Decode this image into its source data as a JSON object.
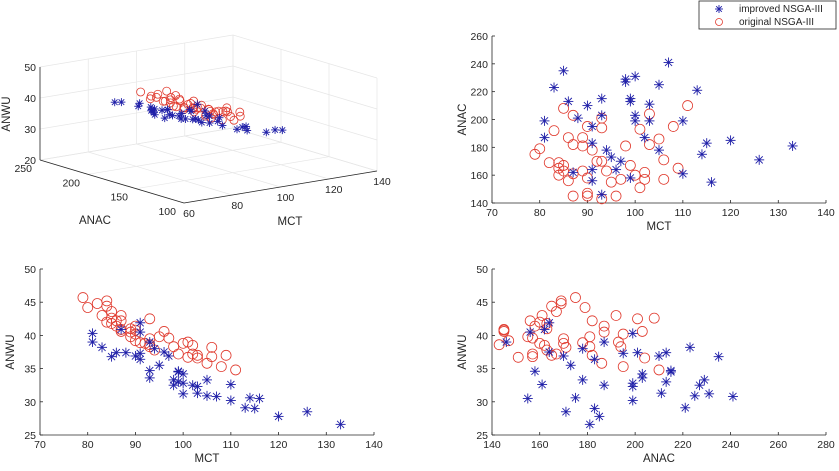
{
  "legend": {
    "items": [
      {
        "label": "improved NSGA-III",
        "marker": "asterisk",
        "color": "#1f1fa8"
      },
      {
        "label": "original NSGA-III",
        "marker": "circle",
        "color": "#e03a2e"
      }
    ],
    "placement": "top-right"
  },
  "chart_data": [
    {
      "id": "plot3d",
      "type": "scatter",
      "projection": "3d",
      "title": "",
      "xlabel": "MCT",
      "ylabel": "ANAC",
      "zlabel": "ANWU",
      "xlim": [
        60,
        140
      ],
      "ylim": [
        100,
        250
      ],
      "zlim": [
        20,
        50
      ],
      "xticks": [
        "60",
        "80",
        "100",
        "120",
        "140"
      ],
      "yticks": [
        "100",
        "150",
        "200",
        "250"
      ],
      "zticks": [
        "20",
        "30",
        "40",
        "50"
      ],
      "grid": true,
      "series_ref": [
        "improved",
        "original"
      ]
    },
    {
      "id": "mct_anac",
      "type": "scatter",
      "title": "",
      "xlabel": "MCT",
      "ylabel": "ANAC",
      "xlim": [
        70,
        140
      ],
      "ylim": [
        140,
        260
      ],
      "xticks": [
        "70",
        "80",
        "90",
        "100",
        "110",
        "120",
        "130",
        "140"
      ],
      "yticks": [
        "140",
        "160",
        "180",
        "200",
        "220",
        "240",
        "260"
      ],
      "x_field": "mct",
      "y_field": "anac",
      "grid": false
    },
    {
      "id": "mct_anwu",
      "type": "scatter",
      "title": "",
      "xlabel": "MCT",
      "ylabel": "ANWU",
      "xlim": [
        70,
        140
      ],
      "ylim": [
        25,
        50
      ],
      "xticks": [
        "70",
        "80",
        "90",
        "100",
        "110",
        "120",
        "130",
        "140"
      ],
      "yticks": [
        "25",
        "30",
        "35",
        "40",
        "45",
        "50"
      ],
      "x_field": "mct",
      "y_field": "anwu",
      "grid": false
    },
    {
      "id": "anac_anwu",
      "type": "scatter",
      "title": "",
      "xlabel": "ANAC",
      "ylabel": "ANWU",
      "xlim": [
        140,
        280
      ],
      "ylim": [
        25,
        50
      ],
      "xticks": [
        "140",
        "160",
        "180",
        "200",
        "220",
        "240",
        "260",
        "280"
      ],
      "yticks": [
        "25",
        "30",
        "35",
        "40",
        "45",
        "50"
      ],
      "x_field": "anac",
      "y_field": "anwu",
      "grid": false
    }
  ],
  "series": {
    "improved": {
      "name": "improved NSGA-III",
      "points": [
        {
          "mct": 81,
          "anac": 199,
          "anwu": 40.3
        },
        {
          "mct": 81,
          "anac": 187,
          "anwu": 39.0
        },
        {
          "mct": 83,
          "anac": 223,
          "anwu": 38.2
        },
        {
          "mct": 85,
          "anac": 235,
          "anwu": 36.8
        },
        {
          "mct": 86,
          "anac": 213,
          "anwu": 37.4
        },
        {
          "mct": 87,
          "anac": 162,
          "anwu": 40.9
        },
        {
          "mct": 88,
          "anac": 201,
          "anwu": 37.4
        },
        {
          "mct": 90,
          "anac": 210,
          "anwu": 36.9
        },
        {
          "mct": 91,
          "anac": 195,
          "anwu": 37.3
        },
        {
          "mct": 91,
          "anac": 183,
          "anwu": 36.4
        },
        {
          "mct": 91,
          "anac": 164,
          "anwu": 41.9
        },
        {
          "mct": 91,
          "anac": 156,
          "anwu": 40.5
        },
        {
          "mct": 93,
          "anac": 215,
          "anwu": 34.7
        },
        {
          "mct": 93,
          "anac": 203,
          "anwu": 33.6
        },
        {
          "mct": 93,
          "anac": 146,
          "anwu": 39.0
        },
        {
          "mct": 94,
          "anac": 178,
          "anwu": 38.0
        },
        {
          "mct": 95,
          "anac": 173,
          "anwu": 35.5
        },
        {
          "mct": 96,
          "anac": 164,
          "anwu": 37.5
        },
        {
          "mct": 97,
          "anac": 170,
          "anwu": 36.9
        },
        {
          "mct": 98,
          "anac": 229,
          "anwu": 33.3
        },
        {
          "mct": 98,
          "anac": 227,
          "anwu": 32.5
        },
        {
          "mct": 99,
          "anac": 215,
          "anwu": 34.5
        },
        {
          "mct": 99,
          "anac": 213,
          "anwu": 33.0
        },
        {
          "mct": 99,
          "anac": 158,
          "anwu": 34.6
        },
        {
          "mct": 100,
          "anac": 231,
          "anwu": 31.2
        },
        {
          "mct": 100,
          "anac": 203,
          "anwu": 34.2
        },
        {
          "mct": 100,
          "anac": 199,
          "anwu": 32.8
        },
        {
          "mct": 102,
          "anac": 187,
          "anwu": 32.5
        },
        {
          "mct": 103,
          "anac": 211,
          "anwu": 31.3
        },
        {
          "mct": 103,
          "anac": 199,
          "anwu": 32.3
        },
        {
          "mct": 105,
          "anac": 225,
          "anwu": 30.9
        },
        {
          "mct": 105,
          "anac": 178,
          "anwu": 33.3
        },
        {
          "mct": 107,
          "anac": 241,
          "anwu": 30.8
        },
        {
          "mct": 110,
          "anac": 199,
          "anwu": 30.2
        },
        {
          "mct": 110,
          "anac": 161,
          "anwu": 32.6
        },
        {
          "mct": 113,
          "anac": 221,
          "anwu": 29.1
        },
        {
          "mct": 114,
          "anac": 175,
          "anwu": 30.6
        },
        {
          "mct": 115,
          "anac": 183,
          "anwu": 29.0
        },
        {
          "mct": 116,
          "anac": 155,
          "anwu": 30.5
        },
        {
          "mct": 120,
          "anac": 185,
          "anwu": 27.8
        },
        {
          "mct": 126,
          "anac": 171,
          "anwu": 28.5
        },
        {
          "mct": 133,
          "anac": 181,
          "anwu": 26.6
        }
      ]
    },
    "original": {
      "name": "original NSGA-III",
      "points": [
        {
          "mct": 79,
          "anac": 175,
          "anwu": 45.7
        },
        {
          "mct": 80,
          "anac": 179,
          "anwu": 44.2
        },
        {
          "mct": 82,
          "anac": 169,
          "anwu": 44.8
        },
        {
          "mct": 83,
          "anac": 192,
          "anwu": 43.0
        },
        {
          "mct": 84,
          "anac": 169,
          "anwu": 45.2
        },
        {
          "mct": 84,
          "anac": 165,
          "anwu": 44.4
        },
        {
          "mct": 84,
          "anac": 160,
          "anwu": 42.0
        },
        {
          "mct": 85,
          "anac": 167,
          "anwu": 43.6
        },
        {
          "mct": 85,
          "anac": 163,
          "anwu": 41.8
        },
        {
          "mct": 85,
          "anac": 208,
          "anwu": 42.6
        },
        {
          "mct": 86,
          "anac": 156,
          "anwu": 42.2
        },
        {
          "mct": 86,
          "anac": 187,
          "anwu": 41.4
        },
        {
          "mct": 87,
          "anac": 161,
          "anwu": 43.0
        },
        {
          "mct": 87,
          "anac": 182,
          "anwu": 42.2
        },
        {
          "mct": 87,
          "anac": 203,
          "anwu": 40.6
        },
        {
          "mct": 87,
          "anac": 145,
          "anwu": 40.9
        },
        {
          "mct": 89,
          "anac": 187,
          "anwu": 40.5
        },
        {
          "mct": 89,
          "anac": 181,
          "anwu": 39.8
        },
        {
          "mct": 89,
          "anac": 163,
          "anwu": 41.0
        },
        {
          "mct": 90,
          "anac": 195,
          "anwu": 40.2
        },
        {
          "mct": 90,
          "anac": 158,
          "anwu": 41.4
        },
        {
          "mct": 90,
          "anac": 147,
          "anwu": 39.2
        },
        {
          "mct": 90,
          "anac": 145,
          "anwu": 40.8
        },
        {
          "mct": 91,
          "anac": 178,
          "anwu": 38.9
        },
        {
          "mct": 92,
          "anac": 170,
          "anwu": 38.8
        },
        {
          "mct": 93,
          "anac": 201,
          "anwu": 42.5
        },
        {
          "mct": 93,
          "anac": 194,
          "anwu": 38.3
        },
        {
          "mct": 93,
          "anac": 170,
          "anwu": 39.5
        },
        {
          "mct": 93,
          "anac": 143,
          "anwu": 38.6
        },
        {
          "mct": 94,
          "anac": 163,
          "anwu": 37.8
        },
        {
          "mct": 95,
          "anac": 155,
          "anwu": 39.8
        },
        {
          "mct": 96,
          "anac": 145,
          "anwu": 40.6
        },
        {
          "mct": 97,
          "anac": 157,
          "anwu": 39.6
        },
        {
          "mct": 98,
          "anac": 181,
          "anwu": 38.3
        },
        {
          "mct": 99,
          "anac": 167,
          "anwu": 37.2
        },
        {
          "mct": 100,
          "anac": 160,
          "anwu": 38.8
        },
        {
          "mct": 101,
          "anac": 193,
          "anwu": 39.0
        },
        {
          "mct": 101,
          "anac": 151,
          "anwu": 36.7
        },
        {
          "mct": 102,
          "anac": 162,
          "anwu": 38.5
        },
        {
          "mct": 102,
          "anac": 157,
          "anwu": 37.2
        },
        {
          "mct": 103,
          "anac": 204,
          "anwu": 36.6
        },
        {
          "mct": 103,
          "anac": 182,
          "anwu": 37.0
        },
        {
          "mct": 105,
          "anac": 186,
          "anwu": 35.8
        },
        {
          "mct": 106,
          "anac": 171,
          "anwu": 38.2
        },
        {
          "mct": 106,
          "anac": 157,
          "anwu": 36.8
        },
        {
          "mct": 108,
          "anac": 195,
          "anwu": 35.3
        },
        {
          "mct": 109,
          "anac": 165,
          "anwu": 37.0
        },
        {
          "mct": 111,
          "anac": 210,
          "anwu": 34.8
        }
      ]
    }
  }
}
